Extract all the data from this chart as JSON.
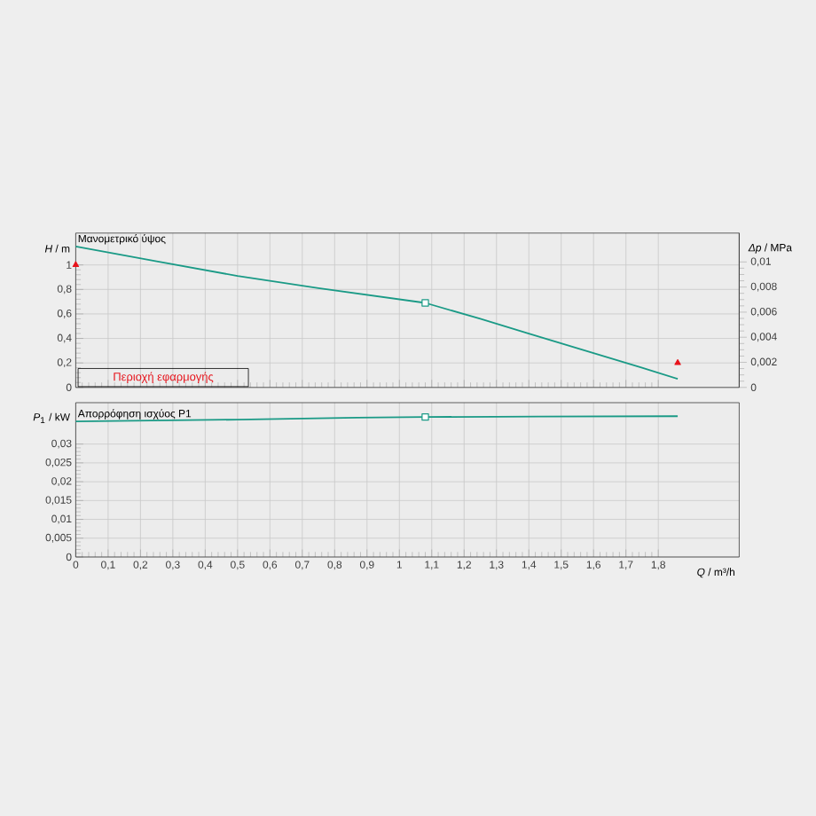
{
  "chart_data": [
    {
      "type": "line",
      "ylabel": "*H* / m",
      "y2label": "*Δp* / MPa",
      "xlim": [
        0,
        2.05
      ],
      "ylim": [
        0,
        1.26
      ],
      "y2lim": [
        0,
        0.0123
      ],
      "yticks": [
        {
          "value": 0,
          "label": "0"
        },
        {
          "value": 0.2,
          "label": "0,2"
        },
        {
          "value": 0.4,
          "label": "0,4"
        },
        {
          "value": 0.6,
          "label": "0,6"
        },
        {
          "value": 0.8,
          "label": "0,8"
        },
        {
          "value": 1,
          "label": "1"
        }
      ],
      "y2ticks": [
        {
          "value": 0,
          "label": "0"
        },
        {
          "value": 0.002,
          "label": "0,002"
        },
        {
          "value": 0.004,
          "label": "0,004"
        },
        {
          "value": 0.006,
          "label": "0,006"
        },
        {
          "value": 0.008,
          "label": "0,008"
        },
        {
          "value": 0.01,
          "label": "0,01"
        }
      ],
      "tick_labels": [
        "y",
        "y2"
      ],
      "grid": true,
      "annotations": [
        "Περιοχή εφαρμογής"
      ],
      "series": [
        {
          "name": "Μανομετρικό ύψος",
          "color": "#1a9a86",
          "line_style": "solid",
          "x": [
            0,
            0.25,
            0.5,
            0.75,
            1.08,
            1.25,
            1.4,
            1.6,
            1.75,
            1.86
          ],
          "values": [
            1.15,
            1.03,
            0.91,
            0.81,
            0.69,
            0.56,
            0.44,
            0.28,
            0.16,
            0.07
          ]
        },
        {
          "type": "scatter",
          "color": "#1a9a86",
          "marker": "square",
          "x": [
            1.08
          ],
          "values": [
            0.69
          ]
        },
        {
          "type": "scatter",
          "color": "#e8141c",
          "marker": "triangle",
          "x": [
            0,
            1.86
          ],
          "values": [
            1.0,
            0.2
          ]
        }
      ]
    },
    {
      "type": "line",
      "ylabel": "*P*$_{1}$ / kW",
      "xlabel": "*Q* / m³/h",
      "xlim": [
        0,
        2.05
      ],
      "ylim": [
        0,
        0.041
      ],
      "xticks": [
        {
          "value": 0,
          "label": "0"
        },
        {
          "value": 0.1,
          "label": "0,1"
        },
        {
          "value": 0.2,
          "label": "0,2"
        },
        {
          "value": 0.3,
          "label": "0,3"
        },
        {
          "value": 0.4,
          "label": "0,4"
        },
        {
          "value": 0.5,
          "label": "0,5"
        },
        {
          "value": 0.6,
          "label": "0,6"
        },
        {
          "value": 0.7,
          "label": "0,7"
        },
        {
          "value": 0.8,
          "label": "0,8"
        },
        {
          "value": 0.9,
          "label": "0,9"
        },
        {
          "value": 1,
          "label": "1"
        },
        {
          "value": 1.1,
          "label": "1,1"
        },
        {
          "value": 1.2,
          "label": "1,2"
        },
        {
          "value": 1.3,
          "label": "1,3"
        },
        {
          "value": 1.4,
          "label": "1,4"
        },
        {
          "value": 1.5,
          "label": "1,5"
        },
        {
          "value": 1.6,
          "label": "1,6"
        },
        {
          "value": 1.7,
          "label": "1,7"
        },
        {
          "value": 1.8,
          "label": "1,8"
        }
      ],
      "yticks": [
        {
          "value": 0,
          "label": "0"
        },
        {
          "value": 0.005,
          "label": "0,005"
        },
        {
          "value": 0.01,
          "label": "0,01"
        },
        {
          "value": 0.015,
          "label": "0,015"
        },
        {
          "value": 0.02,
          "label": "0,02"
        },
        {
          "value": 0.025,
          "label": "0,025"
        },
        {
          "value": 0.03,
          "label": "0,03"
        }
      ],
      "tick_labels": [
        "x",
        "y"
      ],
      "grid": true,
      "series": [
        {
          "name": "Απορρόφηση ισχύος P1",
          "color": "#1a9a86",
          "line_style": "solid",
          "x": [
            0,
            0.5,
            0.87,
            1.08,
            1.43,
            1.86
          ],
          "values": [
            0.036,
            0.0365,
            0.037,
            0.0372,
            0.0373,
            0.0374
          ]
        },
        {
          "type": "scatter",
          "color": "#1a9a86",
          "marker": "square",
          "x": [
            1.08
          ],
          "values": [
            0.0372
          ]
        }
      ]
    }
  ]
}
